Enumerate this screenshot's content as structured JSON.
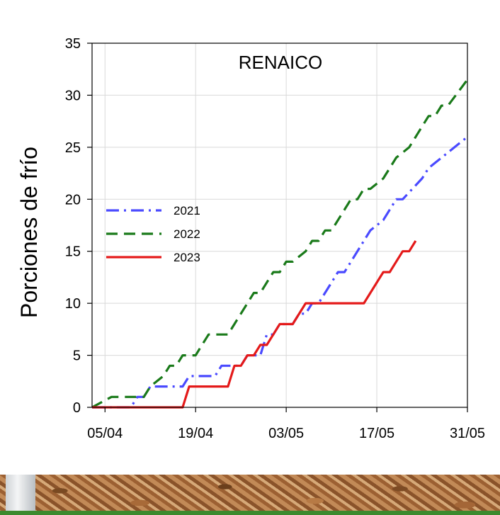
{
  "chart_data": {
    "type": "line",
    "title": "RENAICO",
    "ylabel": "Porciones de frío",
    "xlabel": "",
    "x_ticks": [
      "05/04",
      "19/04",
      "03/05",
      "17/05",
      "31/05"
    ],
    "x_range": [
      "03/04",
      "31/05"
    ],
    "y_ticks": [
      "0",
      "5",
      "10",
      "15",
      "20",
      "25",
      "30",
      "35"
    ],
    "ylim": [
      0,
      35
    ],
    "grid": true,
    "legend_placement": "middle-left",
    "series": [
      {
        "name": "2021",
        "color": "#4a4aff",
        "dash": "dash-dot",
        "points": [
          [
            "03/04",
            0
          ],
          [
            "09/04",
            0
          ],
          [
            "10/04",
            1
          ],
          [
            "11/04",
            1
          ],
          [
            "12/04",
            2
          ],
          [
            "17/04",
            2
          ],
          [
            "18/04",
            3
          ],
          [
            "22/04",
            3
          ],
          [
            "23/04",
            4
          ],
          [
            "26/04",
            4
          ],
          [
            "27/04",
            5
          ],
          [
            "29/04",
            5
          ],
          [
            "30/04",
            7
          ],
          [
            "01/05",
            7
          ],
          [
            "02/05",
            8
          ],
          [
            "04/05",
            8
          ],
          [
            "05/05",
            9
          ],
          [
            "06/05",
            9
          ],
          [
            "07/05",
            10
          ],
          [
            "08/05",
            10
          ],
          [
            "10/05",
            12
          ],
          [
            "11/05",
            13
          ],
          [
            "12/05",
            13
          ],
          [
            "14/05",
            15
          ],
          [
            "15/05",
            16
          ],
          [
            "16/05",
            17
          ],
          [
            "18/05",
            18
          ],
          [
            "19/05",
            19
          ],
          [
            "20/05",
            20
          ],
          [
            "21/05",
            20
          ],
          [
            "24/05",
            22
          ],
          [
            "25/05",
            23
          ],
          [
            "31/05",
            26
          ]
        ]
      },
      {
        "name": "2022",
        "color": "#1a7a1a",
        "dash": "dashed",
        "points": [
          [
            "03/04",
            0
          ],
          [
            "06/04",
            1
          ],
          [
            "11/04",
            1
          ],
          [
            "12/04",
            2
          ],
          [
            "14/04",
            3
          ],
          [
            "15/04",
            4
          ],
          [
            "16/04",
            4
          ],
          [
            "17/04",
            5
          ],
          [
            "19/04",
            5
          ],
          [
            "20/04",
            6
          ],
          [
            "21/04",
            7
          ],
          [
            "24/04",
            7
          ],
          [
            "25/04",
            8
          ],
          [
            "27/04",
            10
          ],
          [
            "28/04",
            11
          ],
          [
            "29/04",
            11
          ],
          [
            "30/04",
            12
          ],
          [
            "01/05",
            13
          ],
          [
            "02/05",
            13
          ],
          [
            "03/05",
            14
          ],
          [
            "04/05",
            14
          ],
          [
            "06/05",
            15
          ],
          [
            "07/05",
            16
          ],
          [
            "08/05",
            16
          ],
          [
            "09/05",
            17
          ],
          [
            "10/05",
            17
          ],
          [
            "12/05",
            19
          ],
          [
            "13/05",
            20
          ],
          [
            "14/05",
            20
          ],
          [
            "15/05",
            21
          ],
          [
            "16/05",
            21
          ],
          [
            "18/05",
            22
          ],
          [
            "20/05",
            24
          ],
          [
            "22/05",
            25
          ],
          [
            "24/05",
            27
          ],
          [
            "25/05",
            28
          ],
          [
            "26/05",
            28
          ],
          [
            "27/05",
            29
          ],
          [
            "28/05",
            29
          ],
          [
            "31/05",
            31.5
          ]
        ]
      },
      {
        "name": "2023",
        "color": "#e41a1a",
        "dash": "solid",
        "points": [
          [
            "03/04",
            0
          ],
          [
            "17/04",
            0
          ],
          [
            "18/04",
            2
          ],
          [
            "24/04",
            2
          ],
          [
            "25/04",
            4
          ],
          [
            "26/04",
            4
          ],
          [
            "27/04",
            5
          ],
          [
            "28/04",
            5
          ],
          [
            "29/04",
            6
          ],
          [
            "30/04",
            6
          ],
          [
            "01/05",
            7
          ],
          [
            "02/05",
            8
          ],
          [
            "04/05",
            8
          ],
          [
            "06/05",
            10
          ],
          [
            "15/05",
            10
          ],
          [
            "18/05",
            13
          ],
          [
            "19/05",
            13
          ],
          [
            "21/05",
            15
          ],
          [
            "22/05",
            15
          ],
          [
            "23/05",
            16
          ]
        ]
      }
    ]
  },
  "photo": {
    "description_icon": "wood-chip-ground-photo"
  }
}
